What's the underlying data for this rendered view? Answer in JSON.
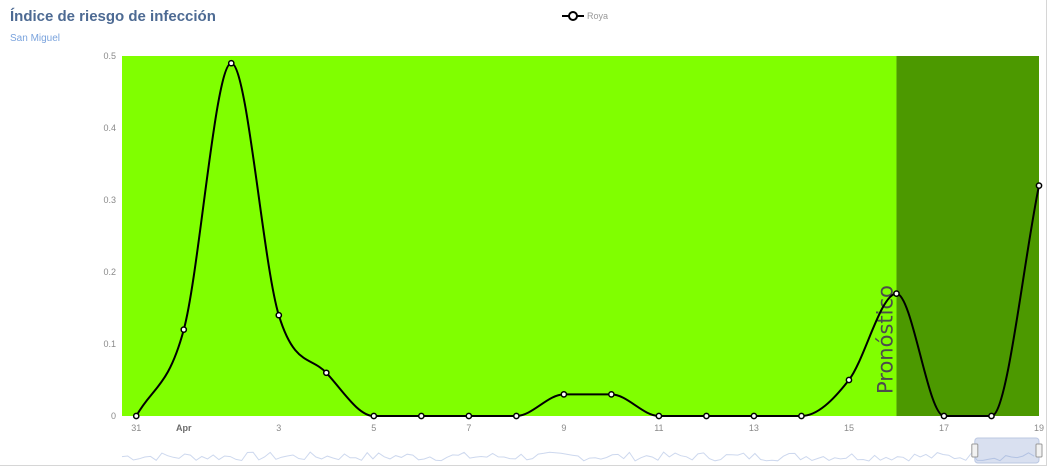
{
  "chart_data": {
    "type": "line",
    "title": "Índice de riesgo de infección",
    "subtitle": "San Miguel",
    "series": [
      {
        "name": "Roya",
        "x": [
          0,
          1,
          2,
          3,
          4,
          5,
          6,
          7,
          8,
          9,
          10,
          11,
          12,
          13,
          14,
          15,
          16,
          17,
          18,
          19
        ],
        "values": [
          0,
          0.12,
          0.49,
          0.14,
          0.06,
          0,
          0,
          0,
          0,
          0.03,
          0.03,
          0,
          0,
          0,
          0,
          0.05,
          0.17,
          0,
          0,
          0.32
        ]
      }
    ],
    "x_ticks": [
      {
        "x": 0,
        "label": "31",
        "bold": false
      },
      {
        "x": 1,
        "label": "Apr",
        "bold": true
      },
      {
        "x": 3,
        "label": "3",
        "bold": false
      },
      {
        "x": 5,
        "label": "5",
        "bold": false
      },
      {
        "x": 7,
        "label": "7",
        "bold": false
      },
      {
        "x": 9,
        "label": "9",
        "bold": false
      },
      {
        "x": 11,
        "label": "11",
        "bold": false
      },
      {
        "x": 13,
        "label": "13",
        "bold": false
      },
      {
        "x": 15,
        "label": "15",
        "bold": false
      },
      {
        "x": 17,
        "label": "17",
        "bold": false
      },
      {
        "x": 19,
        "label": "19",
        "bold": false
      }
    ],
    "y_ticks": [
      "0",
      "0.1",
      "0.2",
      "0.3",
      "0.4",
      "0.5"
    ],
    "ylim": [
      0,
      0.5
    ],
    "xlim": [
      -0.3,
      19
    ],
    "bands": [
      {
        "from": -0.3,
        "to": 16,
        "color": "#80ff00",
        "label": ""
      },
      {
        "from": 16,
        "to": 19,
        "color": "#4c9900",
        "label": "Pronóstico"
      }
    ],
    "line_color": "#000000",
    "legend_position": "top-center",
    "navigator_selection": [
      0.93,
      1.0
    ]
  }
}
